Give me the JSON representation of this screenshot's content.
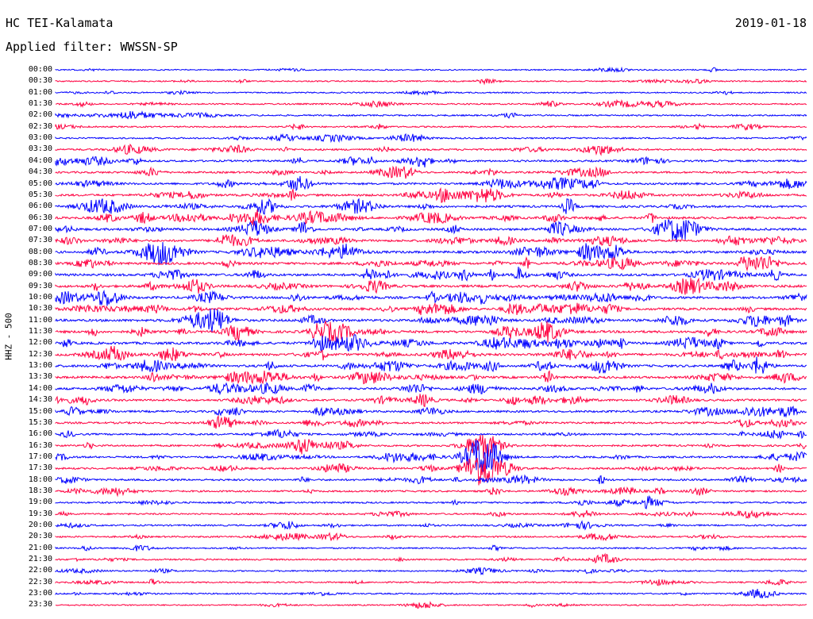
{
  "header": {
    "station": "HC TEI-Kalamata",
    "date": "2019-01-18",
    "filter_label": "Applied filter:",
    "filter_value": "WWSSN-SP"
  },
  "channel_label": "HHZ - 500",
  "chart_data": {
    "type": "line",
    "title": "HC TEI-Kalamata",
    "subtitle": "Applied filter: WWSSN-SP",
    "ylabel": "HHZ - 500",
    "row_labels": [
      "00:00",
      "00:30",
      "01:00",
      "01:30",
      "02:00",
      "02:30",
      "03:00",
      "03:30",
      "04:00",
      "04:30",
      "05:00",
      "05:30",
      "06:00",
      "06:30",
      "07:00",
      "07:30",
      "08:00",
      "08:30",
      "09:00",
      "09:30",
      "10:00",
      "10:30",
      "11:00",
      "11:30",
      "12:00",
      "12:30",
      "13:00",
      "13:30",
      "14:00",
      "14:30",
      "15:00",
      "15:30",
      "16:00",
      "16:30",
      "17:00",
      "17:30",
      "18:00",
      "18:30",
      "19:00",
      "19:30",
      "20:00",
      "20:30",
      "21:00",
      "21:30",
      "22:00",
      "22:30",
      "23:00",
      "23:30"
    ],
    "trace_colors": [
      "#0000ff",
      "#ff0040"
    ],
    "activity": [
      0.15,
      0.2,
      0.2,
      0.3,
      0.35,
      0.3,
      0.35,
      0.55,
      0.6,
      0.6,
      0.7,
      0.75,
      0.8,
      0.85,
      0.85,
      0.8,
      0.9,
      0.9,
      0.9,
      0.95,
      0.9,
      0.9,
      0.95,
      0.95,
      0.95,
      0.9,
      0.9,
      0.85,
      0.8,
      0.7,
      0.7,
      0.6,
      0.55,
      0.55,
      0.6,
      0.55,
      0.6,
      0.5,
      0.45,
      0.4,
      0.4,
      0.4,
      0.3,
      0.35,
      0.3,
      0.3,
      0.25,
      0.2
    ],
    "events": [
      {
        "row": 34,
        "x": 0.6,
        "amplitude": 1.0
      },
      {
        "row": 35,
        "x": 0.6,
        "amplitude": 0.9
      },
      {
        "row": 33,
        "x": 0.6,
        "amplitude": 0.6
      }
    ]
  }
}
